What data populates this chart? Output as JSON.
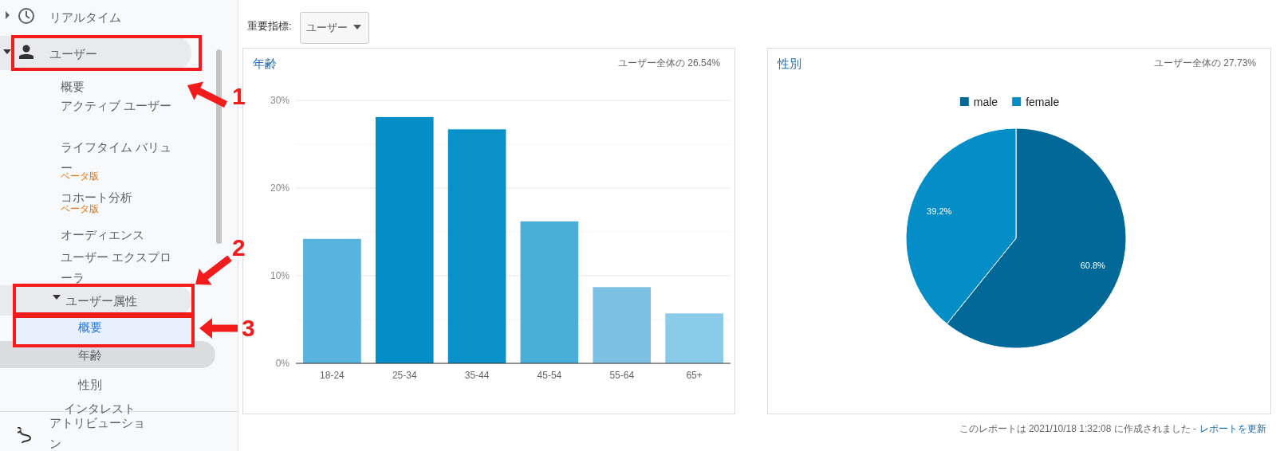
{
  "chart_data": [
    {
      "type": "bar",
      "title": "年齢",
      "subtitle": "ユーザー全体の 26.54%",
      "categories": [
        "18-24",
        "25-34",
        "35-44",
        "45-54",
        "55-64",
        "65+"
      ],
      "values": [
        14.2,
        28.1,
        26.7,
        16.2,
        8.7,
        5.7
      ],
      "colors": [
        "#58b4de",
        "#058dc7",
        "#0b91c9",
        "#4baed9",
        "#7cc1e3",
        "#8acbe9"
      ],
      "ylim": [
        0,
        30
      ],
      "yticks": [
        {
          "value": 0,
          "label": "0%"
        },
        {
          "value": 5,
          "label": null
        },
        {
          "value": 10,
          "label": "10%"
        },
        {
          "value": 15,
          "label": null
        },
        {
          "value": 20,
          "label": "20%"
        },
        {
          "value": 25,
          "label": null
        },
        {
          "value": 30,
          "label": "30%"
        }
      ],
      "grid": "y"
    },
    {
      "type": "pie",
      "title": "性別",
      "subtitle": "ユーザー全体の 27.73%",
      "categories": [
        "male",
        "female"
      ],
      "values": [
        60.8,
        39.2
      ],
      "colors": [
        "#026898",
        "#058dc7"
      ],
      "value_labels": [
        "60.8%",
        "39.2%"
      ],
      "legend": "top"
    },
    {
      "type": "other",
      "annotations": [
        "リアルタイム",
        "ユーザー",
        "概要",
        "アクティブ ユーザー",
        "ライフタイム バリュー",
        "ベータ版",
        "コホート分析",
        "ベータ版",
        "オーディエンス",
        "ユーザー エクスプローラ",
        "ユーザー属性",
        "概要",
        "年齢",
        "性別",
        "インタレスト",
        "アトリビューション",
        "1",
        "2",
        "3",
        "重要指標:",
        "ユーザー",
        "このレポートは 2021/10/18 1:32:08 に作成されました -",
        "レポートを更新"
      ]
    }
  ]
}
